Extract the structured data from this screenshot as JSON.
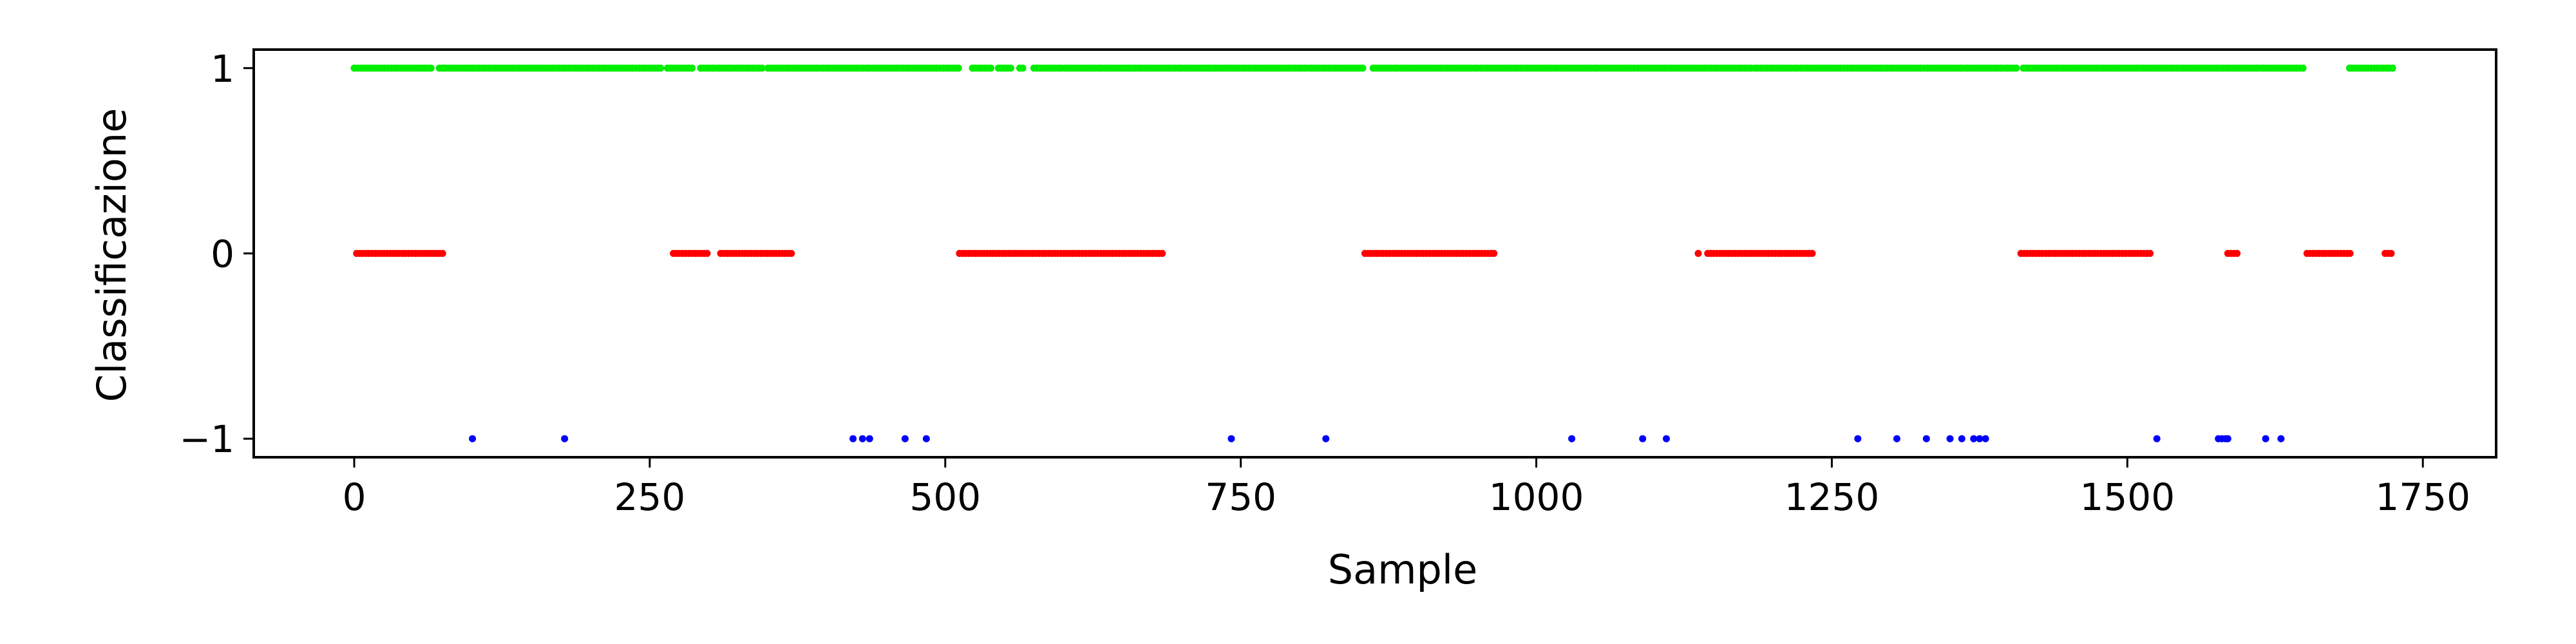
{
  "chart_data": {
    "type": "scatter",
    "title": "",
    "xlabel": "Sample",
    "ylabel": "Classificazione",
    "xlim": [
      -85,
      1812
    ],
    "ylim": [
      -1.1,
      1.1
    ],
    "x_ticks": [
      0,
      250,
      500,
      750,
      1000,
      1250,
      1500,
      1750
    ],
    "x_tick_labels": [
      "0",
      "250",
      "500",
      "750",
      "1000",
      "1250",
      "1500",
      "1750"
    ],
    "y_ticks": [
      1,
      0,
      -1
    ],
    "y_tick_labels": [
      "1",
      "0",
      "−1"
    ],
    "grid": false,
    "legend": "none",
    "series": [
      {
        "y": 1,
        "color": "#00ee00",
        "x_ranges": [
          [
            0,
            65
          ],
          [
            72,
            260
          ],
          [
            265,
            288
          ],
          [
            293,
            345
          ],
          [
            350,
            512
          ],
          [
            523,
            540
          ],
          [
            545,
            556
          ],
          [
            563,
            568
          ],
          [
            575,
            855
          ],
          [
            862,
            1182
          ],
          [
            1185,
            1408
          ],
          [
            1412,
            1650
          ],
          [
            1688,
            1725
          ]
        ]
      },
      {
        "y": 0,
        "color": "#ff0000",
        "x_ranges": [
          [
            2,
            75
          ],
          [
            270,
            300
          ],
          [
            310,
            370
          ],
          [
            512,
            685
          ],
          [
            855,
            965
          ],
          [
            1145,
            1235
          ],
          [
            1410,
            1520
          ],
          [
            1585,
            1595
          ],
          [
            1652,
            1690
          ],
          [
            1718,
            1725
          ]
        ],
        "x_points": [
          1137
        ]
      },
      {
        "y": -1,
        "color": "#0000ff",
        "x_points": [
          100,
          178,
          422,
          430,
          436,
          466,
          484,
          742,
          822,
          1030,
          1090,
          1110,
          1272,
          1305,
          1330,
          1350,
          1360,
          1370,
          1375,
          1380,
          1525,
          1577,
          1580,
          1583,
          1585,
          1617,
          1630
        ]
      }
    ]
  }
}
